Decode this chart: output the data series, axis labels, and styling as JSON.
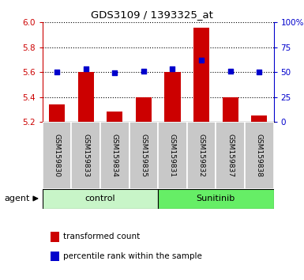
{
  "title": "GDS3109 / 1393325_at",
  "samples": [
    "GSM159830",
    "GSM159833",
    "GSM159834",
    "GSM159835",
    "GSM159831",
    "GSM159832",
    "GSM159837",
    "GSM159838"
  ],
  "red_values": [
    5.34,
    5.6,
    5.28,
    5.4,
    5.6,
    5.96,
    5.4,
    5.25
  ],
  "blue_values": [
    50,
    53,
    49,
    51,
    53,
    62,
    51,
    50
  ],
  "ylim_left": [
    5.2,
    6.0
  ],
  "ylim_right": [
    0,
    100
  ],
  "yticks_left": [
    5.2,
    5.4,
    5.6,
    5.8,
    6.0
  ],
  "yticks_right": [
    0,
    25,
    50,
    75,
    100
  ],
  "ytick_labels_right": [
    "0",
    "25",
    "50",
    "75",
    "100%"
  ],
  "groups": [
    {
      "label": "control",
      "indices": [
        0,
        1,
        2,
        3
      ],
      "color": "#c8f5c8"
    },
    {
      "label": "Sunitinib",
      "indices": [
        4,
        5,
        6,
        7
      ],
      "color": "#66ee66"
    }
  ],
  "bar_color": "#cc0000",
  "dot_color": "#0000cc",
  "tick_area_color": "#c8c8c8",
  "left_axis_color": "#cc0000",
  "right_axis_color": "#0000cc",
  "bar_width": 0.55,
  "agent_label": "agent",
  "legend_items": [
    {
      "color": "#cc0000",
      "label": "transformed count"
    },
    {
      "color": "#0000cc",
      "label": "percentile rank within the sample"
    }
  ]
}
